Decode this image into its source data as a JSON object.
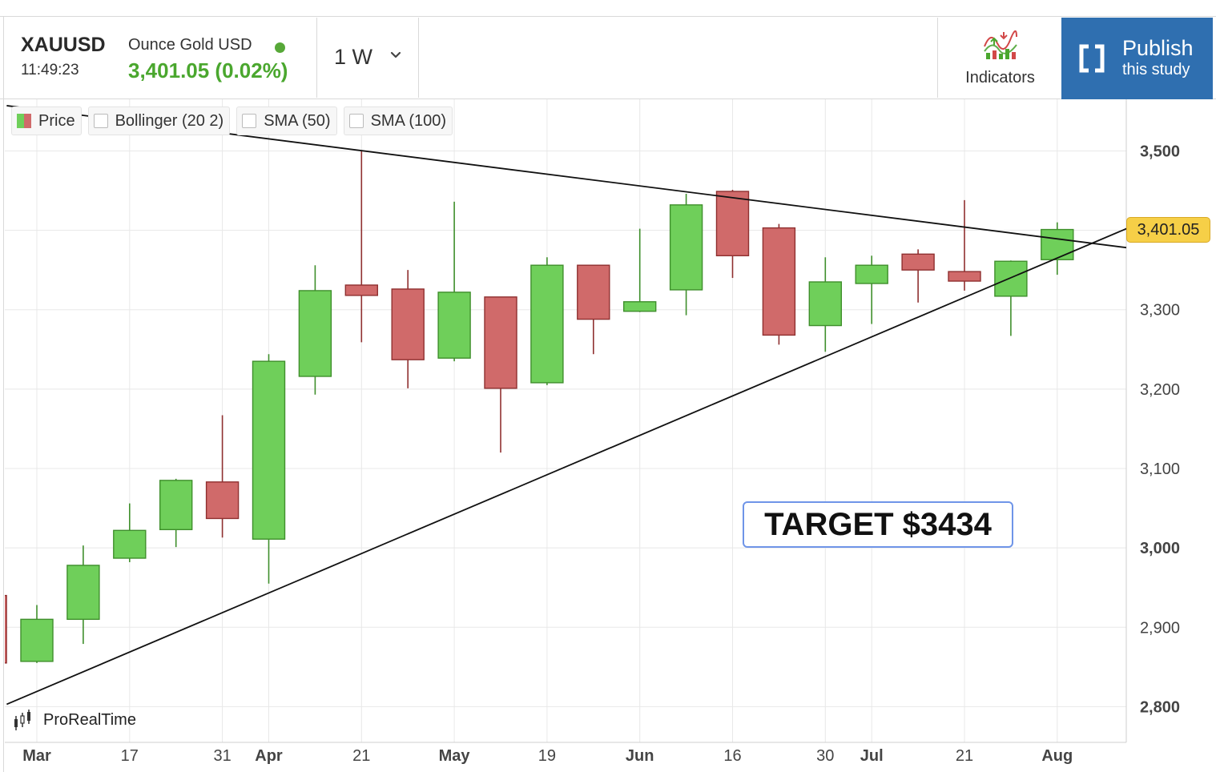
{
  "header": {
    "symbol": "XAUUSD",
    "description": "Ounce Gold USD",
    "time": "11:49:23",
    "last_price": "3,401.05 (0.02%)",
    "interval": "1 W",
    "indicators_label": "Indicators",
    "publish_line1": "Publish",
    "publish_line2": "this study",
    "colors": {
      "up": "#4aa72e",
      "publish_bg": "#2f6fb0",
      "live_dot": "#57a838"
    }
  },
  "legend": {
    "price": "Price",
    "bollinger": "Bollinger (20 2)",
    "sma50": "SMA (50)",
    "sma100": "SMA (100)"
  },
  "annotations": {
    "target": "TARGET $3434",
    "current_price_tag": "3,401.05",
    "brand": "ProRealTime"
  },
  "chart_data": {
    "type": "candlestick",
    "timeframe": "1 W",
    "ylim": [
      2755,
      3565
    ],
    "y_ticks": [
      {
        "value": 2800,
        "label": "2,800",
        "bold": true
      },
      {
        "value": 2900,
        "label": "2,900",
        "bold": false
      },
      {
        "value": 3000,
        "label": "3,000",
        "bold": true
      },
      {
        "value": 3100,
        "label": "3,100",
        "bold": false
      },
      {
        "value": 3200,
        "label": "3,200",
        "bold": false
      },
      {
        "value": 3300,
        "label": "3,300",
        "bold": false
      },
      {
        "value": 3500,
        "label": "3,500",
        "bold": true
      }
    ],
    "x_ticks": [
      {
        "index": 0,
        "label": "Mar",
        "bold": true
      },
      {
        "index": 2,
        "label": "17",
        "bold": false
      },
      {
        "index": 4,
        "label": "31",
        "bold": false
      },
      {
        "index": 5,
        "label": "Apr",
        "bold": true
      },
      {
        "index": 7,
        "label": "21",
        "bold": false
      },
      {
        "index": 9,
        "label": "May",
        "bold": true
      },
      {
        "index": 11,
        "label": "19",
        "bold": false
      },
      {
        "index": 13,
        "label": "Jun",
        "bold": true
      },
      {
        "index": 15,
        "label": "16",
        "bold": false
      },
      {
        "index": 17,
        "label": "30",
        "bold": false
      },
      {
        "index": 18,
        "label": "Jul",
        "bold": true
      },
      {
        "index": 20,
        "label": "21",
        "bold": false
      },
      {
        "index": 22,
        "label": "Aug",
        "bold": true
      }
    ],
    "candles": [
      {
        "index": -1,
        "open": 2940,
        "high": 2940,
        "low": 2855,
        "close": 2855
      },
      {
        "index": 0,
        "open": 2857,
        "high": 2928,
        "low": 2855,
        "close": 2910
      },
      {
        "index": 1,
        "open": 2910,
        "high": 3003,
        "low": 2879,
        "close": 2978
      },
      {
        "index": 2,
        "open": 2987,
        "high": 3056,
        "low": 2982,
        "close": 3022
      },
      {
        "index": 3,
        "open": 3023,
        "high": 3087,
        "low": 3001,
        "close": 3085
      },
      {
        "index": 4,
        "open": 3083,
        "high": 3167,
        "low": 3013,
        "close": 3037
      },
      {
        "index": 5,
        "open": 3011,
        "high": 3244,
        "low": 2955,
        "close": 3235
      },
      {
        "index": 6,
        "open": 3216,
        "high": 3356,
        "low": 3193,
        "close": 3324
      },
      {
        "index": 7,
        "open": 3331,
        "high": 3500,
        "low": 3259,
        "close": 3318
      },
      {
        "index": 8,
        "open": 3326,
        "high": 3350,
        "low": 3201,
        "close": 3237
      },
      {
        "index": 9,
        "open": 3239,
        "high": 3436,
        "low": 3235,
        "close": 3322
      },
      {
        "index": 10,
        "open": 3316,
        "high": 3316,
        "low": 3120,
        "close": 3201
      },
      {
        "index": 11,
        "open": 3208,
        "high": 3366,
        "low": 3205,
        "close": 3356
      },
      {
        "index": 12,
        "open": 3356,
        "high": 3356,
        "low": 3244,
        "close": 3288
      },
      {
        "index": 13,
        "open": 3298,
        "high": 3402,
        "low": 3297,
        "close": 3310
      },
      {
        "index": 14,
        "open": 3325,
        "high": 3446,
        "low": 3293,
        "close": 3432
      },
      {
        "index": 15,
        "open": 3449,
        "high": 3451,
        "low": 3340,
        "close": 3368
      },
      {
        "index": 16,
        "open": 3403,
        "high": 3408,
        "low": 3256,
        "close": 3268
      },
      {
        "index": 17,
        "open": 3280,
        "high": 3366,
        "low": 3247,
        "close": 3335
      },
      {
        "index": 18,
        "open": 3333,
        "high": 3368,
        "low": 3282,
        "close": 3356
      },
      {
        "index": 19,
        "open": 3370,
        "high": 3376,
        "low": 3309,
        "close": 3350
      },
      {
        "index": 20,
        "open": 3348,
        "high": 3438,
        "low": 3324,
        "close": 3336
      },
      {
        "index": 21,
        "open": 3317,
        "high": 3362,
        "low": 3267,
        "close": 3361
      },
      {
        "index": 22,
        "open": 3363,
        "high": 3410,
        "low": 3344,
        "close": 3401
      }
    ],
    "trendlines": [
      {
        "name": "upper",
        "from": {
          "index": -0.65,
          "value": 3557
        },
        "to": {
          "index": 23.65,
          "value": 3377
        }
      },
      {
        "name": "lower",
        "from": {
          "index": -0.65,
          "value": 2803
        },
        "to": {
          "index": 23.65,
          "value": 3406
        }
      }
    ],
    "current_price": 3401.05,
    "colors": {
      "up": "#6fcf5a",
      "up_border": "#3f8f2c",
      "down": "#d06a6a",
      "down_border": "#8f3030",
      "grid": "#e8e8e8",
      "line": "#111111"
    },
    "grid": true,
    "legend": "top-left"
  }
}
